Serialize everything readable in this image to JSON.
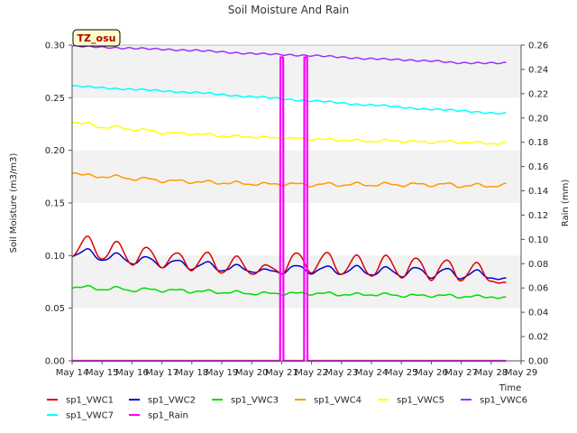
{
  "chart_data": {
    "type": "line",
    "title": "Soil Moisture And Rain",
    "xlabel": "Time",
    "ylabel": "Soil Moisture (m3/m3)",
    "y2label": "Rain (mm)",
    "badge": "TZ_osu",
    "x_ticks": [
      "May 14",
      "May 15",
      "May 16",
      "May 17",
      "May 18",
      "May 19",
      "May 20",
      "May 21",
      "May 22",
      "May 23",
      "May 24",
      "May 25",
      "May 26",
      "May 27",
      "May 28",
      "May 29"
    ],
    "x_range": [
      0,
      15
    ],
    "ylim": [
      0.0,
      0.3
    ],
    "y_ticks": [
      "0.00",
      "0.05",
      "0.10",
      "0.15",
      "0.20",
      "0.25",
      "0.30"
    ],
    "y2lim": [
      0.0,
      0.26
    ],
    "y2_ticks": [
      "0.00",
      "0.02",
      "0.04",
      "0.06",
      "0.08",
      "0.10",
      "0.12",
      "0.14",
      "0.16",
      "0.18",
      "0.20",
      "0.22",
      "0.24",
      "0.26"
    ],
    "grid": "horizontal bands",
    "series": [
      {
        "name": "sp1_VWC1",
        "color": "#dd0000",
        "axis": "left",
        "kind": "diurnal",
        "x": [
          0.0,
          0.5,
          1.0,
          1.5,
          2.0,
          2.5,
          3.0,
          3.5,
          4.0,
          4.5,
          5.0,
          5.5,
          6.0,
          6.5,
          7.0,
          7.5,
          8.0,
          8.5,
          9.0,
          9.5,
          10.0,
          10.5,
          11.0,
          11.5,
          12.0,
          12.5,
          13.0,
          13.5,
          14.0,
          14.5
        ],
        "values": [
          0.099,
          0.118,
          0.096,
          0.113,
          0.091,
          0.108,
          0.089,
          0.103,
          0.086,
          0.103,
          0.083,
          0.099,
          0.082,
          0.091,
          0.083,
          0.103,
          0.084,
          0.103,
          0.082,
          0.1,
          0.08,
          0.1,
          0.079,
          0.098,
          0.077,
          0.096,
          0.076,
          0.093,
          0.075,
          0.074
        ]
      },
      {
        "name": "sp1_VWC2",
        "color": "#0000cc",
        "axis": "left",
        "kind": "diurnal",
        "x": [
          0.0,
          0.5,
          1.0,
          1.5,
          2.0,
          2.5,
          3.0,
          3.5,
          4.0,
          4.5,
          5.0,
          5.5,
          6.0,
          6.5,
          7.0,
          7.5,
          8.0,
          8.5,
          9.0,
          9.5,
          10.0,
          10.5,
          11.0,
          11.5,
          12.0,
          12.5,
          13.0,
          13.5,
          14.0,
          14.5
        ],
        "values": [
          0.099,
          0.106,
          0.095,
          0.102,
          0.092,
          0.099,
          0.089,
          0.096,
          0.087,
          0.094,
          0.085,
          0.091,
          0.084,
          0.087,
          0.083,
          0.091,
          0.083,
          0.09,
          0.082,
          0.09,
          0.081,
          0.089,
          0.08,
          0.089,
          0.079,
          0.088,
          0.078,
          0.086,
          0.078,
          0.078
        ]
      },
      {
        "name": "sp1_VWC3",
        "color": "#00dd00",
        "axis": "left",
        "kind": "diurnal",
        "x": [
          0.0,
          0.5,
          1.0,
          1.5,
          2.0,
          2.5,
          3.0,
          3.5,
          4.0,
          4.5,
          5.0,
          5.5,
          6.0,
          6.5,
          7.0,
          7.5,
          8.0,
          8.5,
          9.0,
          9.5,
          10.0,
          10.5,
          11.0,
          11.5,
          12.0,
          12.5,
          13.0,
          13.5,
          14.0,
          14.5
        ],
        "values": [
          0.069,
          0.071,
          0.067,
          0.07,
          0.066,
          0.069,
          0.066,
          0.068,
          0.065,
          0.067,
          0.064,
          0.066,
          0.063,
          0.065,
          0.063,
          0.065,
          0.063,
          0.065,
          0.062,
          0.064,
          0.062,
          0.064,
          0.061,
          0.063,
          0.061,
          0.063,
          0.06,
          0.062,
          0.06,
          0.06
        ]
      },
      {
        "name": "sp1_VWC4",
        "color": "#ff9900",
        "axis": "left",
        "kind": "diurnal",
        "x": [
          0.0,
          0.5,
          1.0,
          1.5,
          2.0,
          2.5,
          3.0,
          3.5,
          4.0,
          4.5,
          5.0,
          5.5,
          6.0,
          6.5,
          7.0,
          7.5,
          8.0,
          8.5,
          9.0,
          9.5,
          10.0,
          10.5,
          11.0,
          11.5,
          12.0,
          12.5,
          13.0,
          13.5,
          14.0,
          14.5
        ],
        "values": [
          0.178,
          0.177,
          0.174,
          0.176,
          0.172,
          0.174,
          0.17,
          0.172,
          0.169,
          0.171,
          0.168,
          0.17,
          0.167,
          0.169,
          0.167,
          0.169,
          0.166,
          0.169,
          0.166,
          0.169,
          0.166,
          0.169,
          0.166,
          0.169,
          0.166,
          0.169,
          0.165,
          0.168,
          0.165,
          0.168
        ]
      },
      {
        "name": "sp1_VWC5",
        "color": "#ffff00",
        "axis": "left",
        "kind": "diurnal",
        "x": [
          0.0,
          0.5,
          1.0,
          1.5,
          2.0,
          2.5,
          3.0,
          3.5,
          4.0,
          4.5,
          5.0,
          5.5,
          6.0,
          6.5,
          7.0,
          7.5,
          8.0,
          8.5,
          9.0,
          9.5,
          10.0,
          10.5,
          11.0,
          11.5,
          12.0,
          12.5,
          13.0,
          13.5,
          14.0,
          14.5
        ],
        "values": [
          0.226,
          0.226,
          0.221,
          0.223,
          0.219,
          0.22,
          0.216,
          0.217,
          0.215,
          0.216,
          0.213,
          0.214,
          0.212,
          0.213,
          0.211,
          0.212,
          0.21,
          0.211,
          0.209,
          0.21,
          0.208,
          0.21,
          0.208,
          0.209,
          0.207,
          0.209,
          0.207,
          0.208,
          0.206,
          0.207
        ]
      },
      {
        "name": "sp1_VWC6",
        "color": "#9933ff",
        "axis": "left",
        "kind": "diurnal",
        "x": [
          0.0,
          2.0,
          4.0,
          6.0,
          8.0,
          10.0,
          12.0,
          13.0,
          14.5
        ],
        "values": [
          0.299,
          0.297,
          0.295,
          0.292,
          0.29,
          0.287,
          0.285,
          0.283,
          0.283
        ]
      },
      {
        "name": "sp1_VWC7",
        "color": "#00ffff",
        "axis": "left",
        "kind": "diurnal",
        "x": [
          0.0,
          2.0,
          4.0,
          6.0,
          8.0,
          10.0,
          12.0,
          14.5
        ],
        "values": [
          0.261,
          0.258,
          0.255,
          0.251,
          0.247,
          0.243,
          0.239,
          0.235
        ]
      },
      {
        "name": "sp1_Rain",
        "color": "#ff00ff",
        "axis": "right",
        "kind": "step",
        "x": [
          0.0,
          6.95,
          6.96,
          7.05,
          7.06,
          7.75,
          7.76,
          7.85,
          7.86,
          14.5
        ],
        "values": [
          0.0,
          0.0,
          0.25,
          0.25,
          0.0,
          0.0,
          0.25,
          0.25,
          0.0,
          0.0
        ]
      }
    ]
  }
}
